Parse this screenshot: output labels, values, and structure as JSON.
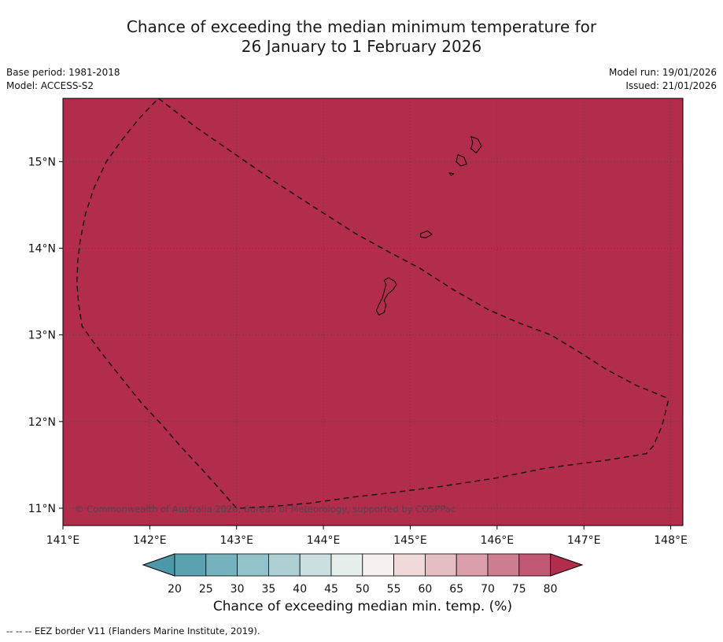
{
  "title": {
    "line1": "Chance of exceeding the median minimum temperature for",
    "line2": "26 January to 1 February 2026"
  },
  "meta": {
    "base_period": "Base period: 1981-2018",
    "model": "Model: ACCESS-S2",
    "model_run": "Model run: 19/01/2026",
    "issued": "Issued: 21/01/2026"
  },
  "map": {
    "fill_color": "#b22c4c",
    "extent": {
      "lon_min": 141.0,
      "lon_max": 148.14,
      "lat_min": 10.8,
      "lat_max": 15.73
    },
    "grid_lons": [
      142,
      143,
      144,
      145,
      146,
      147,
      148
    ],
    "grid_lats": [
      11,
      12,
      13,
      14,
      15
    ],
    "x_ticks": [
      {
        "lon": 141,
        "label": "141°E"
      },
      {
        "lon": 142,
        "label": "142°E"
      },
      {
        "lon": 143,
        "label": "143°E"
      },
      {
        "lon": 144,
        "label": "144°E"
      },
      {
        "lon": 145,
        "label": "145°E"
      },
      {
        "lon": 146,
        "label": "146°E"
      },
      {
        "lon": 147,
        "label": "147°E"
      },
      {
        "lon": 148,
        "label": "148°E"
      }
    ],
    "y_ticks": [
      {
        "lat": 11,
        "label": "11°N"
      },
      {
        "lat": 12,
        "label": "12°N"
      },
      {
        "lat": 13,
        "label": "13°N"
      },
      {
        "lat": 14,
        "label": "14°N"
      },
      {
        "lat": 15,
        "label": "15°N"
      }
    ],
    "copyright": "© Commonwealth of Australia 2026, Bureau of Meteorology, supported by COSPPac",
    "eez_border": {
      "points": [
        [
          142.1,
          15.73
        ],
        [
          142.54,
          15.39
        ],
        [
          142.99,
          15.08
        ],
        [
          143.45,
          14.76
        ],
        [
          143.9,
          14.47
        ],
        [
          144.37,
          14.17
        ],
        [
          144.75,
          13.96
        ],
        [
          145.11,
          13.77
        ],
        [
          145.5,
          13.52
        ],
        [
          145.9,
          13.29
        ],
        [
          146.25,
          13.14
        ],
        [
          146.62,
          13.0
        ],
        [
          146.95,
          12.8
        ],
        [
          147.26,
          12.6
        ],
        [
          147.6,
          12.42
        ],
        [
          147.94,
          12.28
        ],
        [
          147.97,
          12.23
        ],
        [
          147.9,
          11.95
        ],
        [
          147.8,
          11.72
        ],
        [
          147.72,
          11.63
        ],
        [
          147.3,
          11.56
        ],
        [
          146.85,
          11.5
        ],
        [
          146.55,
          11.46
        ],
        [
          146.0,
          11.35
        ],
        [
          145.35,
          11.25
        ],
        [
          144.8,
          11.18
        ],
        [
          144.35,
          11.13
        ],
        [
          143.85,
          11.06
        ],
        [
          143.4,
          11.02
        ],
        [
          143.0,
          11.0
        ],
        [
          142.78,
          11.25
        ],
        [
          142.6,
          11.45
        ],
        [
          142.35,
          11.72
        ],
        [
          142.15,
          11.95
        ],
        [
          141.9,
          12.22
        ],
        [
          141.7,
          12.47
        ],
        [
          141.5,
          12.72
        ],
        [
          141.35,
          12.92
        ],
        [
          141.22,
          13.1
        ],
        [
          141.18,
          13.36
        ],
        [
          141.16,
          13.6
        ],
        [
          141.17,
          13.85
        ],
        [
          141.2,
          14.1
        ],
        [
          141.26,
          14.4
        ],
        [
          141.36,
          14.7
        ],
        [
          141.5,
          15.0
        ],
        [
          141.68,
          15.25
        ],
        [
          141.88,
          15.5
        ],
        [
          142.1,
          15.73
        ]
      ]
    },
    "islands": [
      {
        "id": "guam",
        "points": [
          [
            144.75,
            13.66
          ],
          [
            144.82,
            13.62
          ],
          [
            144.84,
            13.58
          ],
          [
            144.8,
            13.52
          ],
          [
            144.74,
            13.47
          ],
          [
            144.7,
            13.4
          ],
          [
            144.72,
            13.34
          ],
          [
            144.7,
            13.26
          ],
          [
            144.64,
            13.23
          ],
          [
            144.61,
            13.28
          ],
          [
            144.64,
            13.35
          ],
          [
            144.68,
            13.43
          ],
          [
            144.7,
            13.5
          ],
          [
            144.72,
            13.58
          ],
          [
            144.7,
            13.63
          ]
        ]
      },
      {
        "id": "rota",
        "points": [
          [
            145.12,
            14.17
          ],
          [
            145.2,
            14.2
          ],
          [
            145.25,
            14.16
          ],
          [
            145.18,
            14.12
          ],
          [
            145.12,
            14.13
          ]
        ]
      },
      {
        "id": "aguijan",
        "points": [
          [
            145.45,
            14.87
          ],
          [
            145.5,
            14.86
          ],
          [
            145.47,
            14.84
          ]
        ]
      },
      {
        "id": "tinian",
        "points": [
          [
            145.55,
            15.08
          ],
          [
            145.62,
            15.05
          ],
          [
            145.65,
            14.97
          ],
          [
            145.58,
            14.95
          ],
          [
            145.53,
            15.0
          ]
        ]
      },
      {
        "id": "saipan",
        "points": [
          [
            145.7,
            15.29
          ],
          [
            145.78,
            15.26
          ],
          [
            145.82,
            15.18
          ],
          [
            145.76,
            15.1
          ],
          [
            145.7,
            15.15
          ],
          [
            145.72,
            15.22
          ]
        ]
      }
    ]
  },
  "colorbar": {
    "label": "Chance of exceeding median min. temp. (%)",
    "ticks": [
      20,
      25,
      30,
      35,
      40,
      45,
      50,
      55,
      60,
      65,
      70,
      75,
      80
    ],
    "segment_colors": [
      "#5aa2b0",
      "#76b2bd",
      "#92c2ca",
      "#aed0d5",
      "#cadfe0",
      "#e7efec",
      "#f6f0ef",
      "#efd9d9",
      "#e5bec4",
      "#da9faa",
      "#cd7d90",
      "#c05874"
    ],
    "arrow_left_color": "#4b98a8",
    "arrow_right_color": "#b22c4c"
  },
  "footnote": "--  --  --  EEZ border V11 (Flanders Marine Institute, 2019).",
  "chart_data": {
    "type": "heatmap",
    "title": "Chance of exceeding the median minimum temperature for 26 January to 1 February 2026",
    "xlabel": "",
    "ylabel": "",
    "x_tick_labels": [
      "141°E",
      "142°E",
      "143°E",
      "144°E",
      "145°E",
      "146°E",
      "147°E",
      "148°E"
    ],
    "y_tick_labels": [
      "11°N",
      "12°N",
      "13°N",
      "14°N",
      "15°N"
    ],
    "lon_range": [
      141.0,
      148.14
    ],
    "lat_range": [
      10.8,
      15.73
    ],
    "colorbar_label": "Chance of exceeding median min. temp. (%)",
    "colorbar_ticks": [
      20,
      25,
      30,
      35,
      40,
      45,
      50,
      55,
      60,
      65,
      70,
      75,
      80
    ],
    "value_field": "chance_of_exceeding_percent",
    "uniform_value": "> 80 (entire mapped region is shaded in the highest colour bin)",
    "grid": true,
    "legend_position": "bottom"
  }
}
